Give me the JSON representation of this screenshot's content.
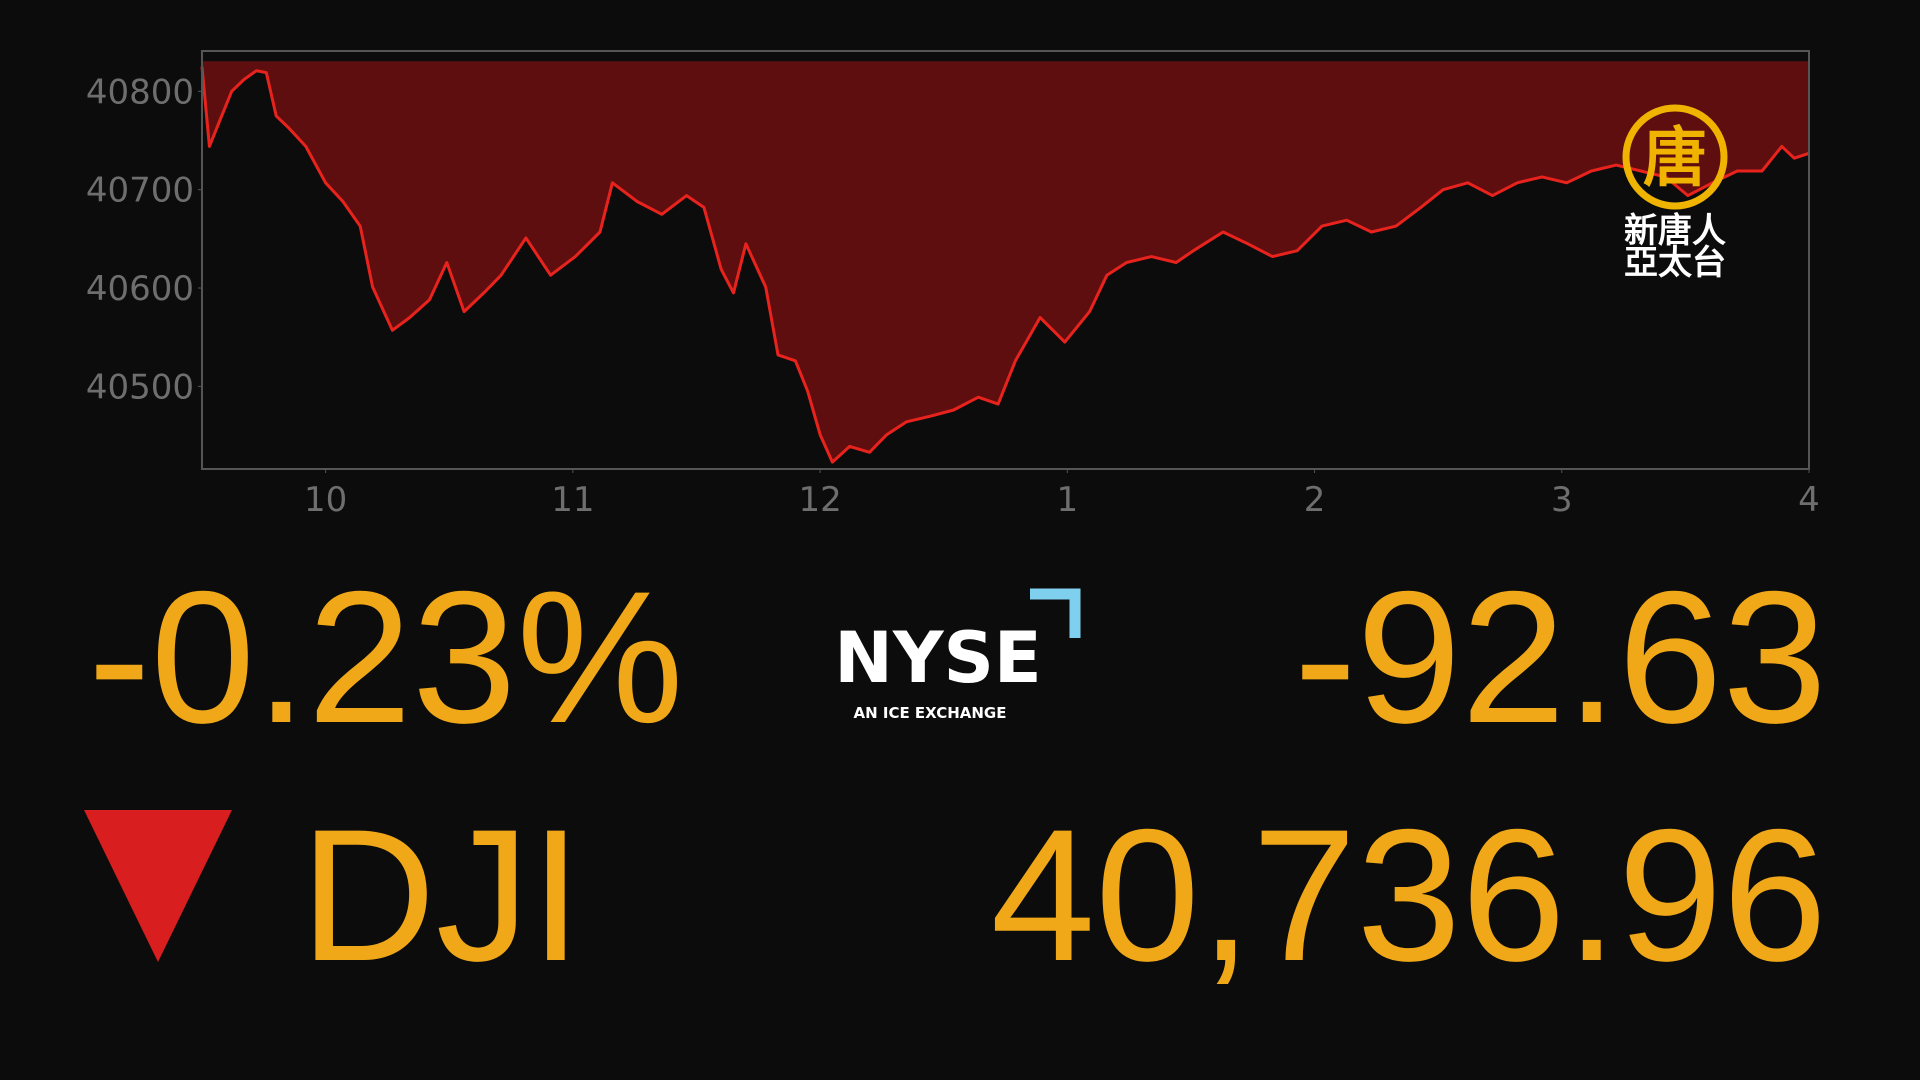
{
  "chart_data": {
    "type": "area",
    "x": [
      9.5,
      9.53,
      9.57,
      9.62,
      9.67,
      9.72,
      9.76,
      9.8,
      9.85,
      9.92,
      10.0,
      10.07,
      10.14,
      10.19,
      10.27,
      10.34,
      10.42,
      10.49,
      10.56,
      10.64,
      10.71,
      10.81,
      10.91,
      11.01,
      11.11,
      11.16,
      11.26,
      11.36,
      11.46,
      11.53,
      11.6,
      11.65,
      11.7,
      11.78,
      11.83,
      11.9,
      11.95,
      12.0,
      12.05,
      12.12,
      12.2,
      12.27,
      12.35,
      12.45,
      12.54,
      12.64,
      12.72,
      12.79,
      12.89,
      12.99,
      13.09,
      13.16,
      13.24,
      13.34,
      13.44,
      13.51,
      13.63,
      13.73,
      13.83,
      13.93,
      14.03,
      14.13,
      14.23,
      14.33,
      14.43,
      14.52,
      14.62,
      14.72,
      14.82,
      14.92,
      15.02,
      15.12,
      15.22,
      15.32,
      15.42,
      15.51,
      15.61,
      15.71,
      15.81,
      15.89,
      15.94,
      16.0
    ],
    "series": [
      {
        "color": "#e8231d",
        "fill": "#5e0e0e",
        "values": [
          40825,
          40744,
          40769,
          40800,
          40812,
          40821,
          40819,
          40775,
          40763,
          40744,
          40707,
          40688,
          40663,
          40601,
          40557,
          40570,
          40588,
          40626,
          40576,
          40595,
          40613,
          40651,
          40613,
          40632,
          40657,
          40707,
          40688,
          40675,
          40694,
          40682,
          40619,
          40595,
          40645,
          40601,
          40532,
          40526,
          40495,
          40451,
          40423,
          40439,
          40433,
          40451,
          40464,
          40470,
          40476,
          40489,
          40482,
          40526,
          40570,
          40545,
          40576,
          40613,
          40626,
          40632,
          40626,
          40638,
          40657,
          40645,
          40632,
          40638,
          40663,
          40669,
          40657,
          40663,
          40682,
          40700,
          40707,
          40694,
          40707,
          40713,
          40707,
          40719,
          40725,
          40719,
          40713,
          40694,
          40707,
          40719,
          40719,
          40744,
          40732,
          40737
        ]
      }
    ],
    "reference_level": 40829.59,
    "xlim": [
      9.5,
      16
    ],
    "xticks": [
      10,
      11,
      12,
      {
        "value": 13,
        "label": "1"
      },
      {
        "value": 14,
        "label": "2"
      },
      {
        "value": 15,
        "label": "3"
      },
      {
        "value": 16,
        "label": "4"
      }
    ],
    "ylim": [
      40416,
      40841
    ],
    "yticks": [
      40500,
      40600,
      40700,
      40800
    ]
  },
  "ticker": {
    "change_percent": "-0.23%",
    "symbol": "DJI",
    "change_points": "-92.63",
    "price": "40,736.96"
  },
  "exchange_logo": {
    "name": "NYSE",
    "tagline": "AN ICE EXCHANGE"
  },
  "watermark": {
    "glyph": "唐",
    "line1": "新唐人",
    "line2": "亞太台"
  }
}
